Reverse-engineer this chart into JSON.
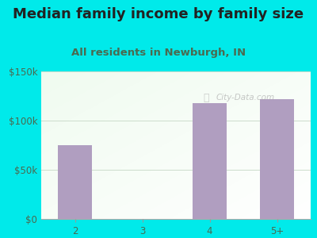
{
  "title": "Median family income by family size",
  "subtitle": "All residents in Newburgh, IN",
  "categories": [
    "2",
    "3",
    "4",
    "5+"
  ],
  "values": [
    75000,
    0,
    118000,
    122000
  ],
  "bar_color": "#b09ec0",
  "background_color": "#00eaea",
  "yticks": [
    0,
    50000,
    100000,
    150000
  ],
  "ytick_labels": [
    "$0",
    "$50k",
    "$100k",
    "$150k"
  ],
  "ylim": [
    0,
    150000
  ],
  "title_fontsize": 13,
  "subtitle_fontsize": 9.5,
  "title_color": "#222222",
  "subtitle_color": "#4a6a50",
  "tick_color": "#4a6a50",
  "watermark": "City-Data.com",
  "grid_color": "#ccddcc"
}
